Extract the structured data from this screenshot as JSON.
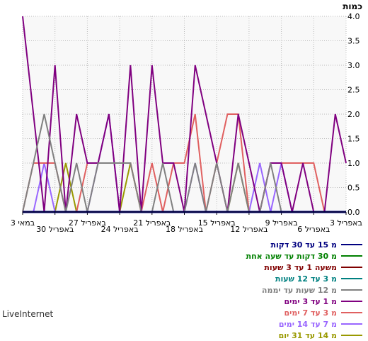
{
  "chart_data": {
    "type": "line",
    "y_unit": "כמות",
    "ylim": [
      0,
      4
    ],
    "y_ticks": [
      "0.0",
      "0.5",
      "1.0",
      "1.5",
      "2.0",
      "2.5",
      "3.0",
      "3.5",
      "4.0"
    ],
    "x_tick_labels": [
      "3 במאי",
      "30 באפריל",
      "27 באפריל",
      "24 באפריל",
      "21 באפריל",
      "18 באפריל",
      "15 באפריל",
      "12 באפריל",
      "9 באפריל",
      "6 באפריל",
      "3 באפריל"
    ],
    "x_tick_positions": [
      0,
      3,
      6,
      9,
      12,
      15,
      18,
      21,
      24,
      27,
      30
    ],
    "x_count": 31,
    "grid": true,
    "legend_position": "bottom-right",
    "series": [
      {
        "name": "מ 15 עד 30 דקות",
        "color": "#000080",
        "values": [
          0,
          0,
          0,
          0,
          0,
          0,
          0,
          0,
          0,
          0,
          0,
          0,
          0,
          0,
          0,
          0,
          0,
          0,
          0,
          0,
          0,
          0,
          0,
          0,
          0,
          0,
          0,
          0,
          0,
          0,
          0
        ]
      },
      {
        "name": "מ 30 דקות עד שעה אחת",
        "color": "#008000",
        "values": [
          0,
          0,
          0,
          0,
          0,
          0,
          0,
          0,
          0,
          0,
          0,
          0,
          0,
          0,
          0,
          0,
          0,
          0,
          0,
          0,
          0,
          0,
          0,
          0,
          0,
          0,
          0,
          0,
          0,
          0,
          0
        ]
      },
      {
        "name": "משעה 1 עד 3 שעות",
        "color": "#800000",
        "values": [
          0,
          0,
          0,
          0,
          0,
          0,
          0,
          0,
          0,
          0,
          0,
          0,
          0,
          0,
          0,
          0,
          0,
          0,
          0,
          0,
          0,
          0,
          0,
          0,
          0,
          0,
          0,
          0,
          0,
          0,
          0
        ]
      },
      {
        "name": "מ 3 עד 12 שעות",
        "color": "#008080",
        "values": [
          0,
          0,
          0,
          0,
          0,
          0,
          0,
          0,
          0,
          0,
          0,
          0,
          0,
          0,
          0,
          0,
          0,
          0,
          0,
          0,
          0,
          0,
          0,
          0,
          0,
          0,
          0,
          0,
          0,
          0,
          0
        ]
      },
      {
        "name": "מ 12 שעות עד יממה",
        "color": "#808080",
        "values": [
          0,
          1,
          2,
          1,
          0,
          1,
          0,
          1,
          1,
          1,
          1,
          0,
          0,
          1,
          0,
          0,
          1,
          0,
          1,
          0,
          1,
          0,
          0,
          1,
          0,
          0,
          0,
          0,
          0,
          0,
          0
        ]
      },
      {
        "name": "מ 1 עד 3 ימים",
        "color": "#800080",
        "values": [
          4,
          2,
          0,
          3,
          0,
          2,
          1,
          1,
          2,
          0,
          3,
          0,
          3,
          1,
          1,
          0,
          3,
          2,
          1,
          0,
          2,
          1,
          0,
          1,
          1,
          0,
          1,
          0,
          0,
          2,
          1
        ]
      },
      {
        "name": "מ 3 עד 7 ימים",
        "color": "#e06060",
        "values": [
          0,
          1,
          1,
          1,
          0,
          0,
          1,
          1,
          1,
          1,
          1,
          0,
          1,
          0,
          1,
          1,
          2,
          0,
          1,
          2,
          2,
          0,
          0,
          1,
          1,
          1,
          1,
          1,
          0,
          0,
          0
        ]
      },
      {
        "name": "מ 7 עד 14 ימים",
        "color": "#9966ff",
        "values": [
          0,
          0,
          1,
          0,
          0,
          0,
          0,
          1,
          2,
          0,
          0,
          0,
          0,
          0,
          0,
          0,
          1,
          0,
          0,
          0,
          0,
          0,
          1,
          0,
          1,
          0,
          0,
          0,
          0,
          0,
          0
        ]
      },
      {
        "name": "מ 14 עד 31 יום",
        "color": "#999900",
        "values": [
          0,
          0,
          0,
          0,
          1,
          0,
          0,
          0,
          0,
          0,
          1,
          0,
          0,
          0,
          0,
          0,
          0,
          0,
          0,
          0,
          1,
          0,
          0,
          0,
          0,
          0,
          0,
          0,
          0,
          0,
          0
        ]
      }
    ]
  },
  "footer": {
    "brand": "LiveInternet"
  }
}
